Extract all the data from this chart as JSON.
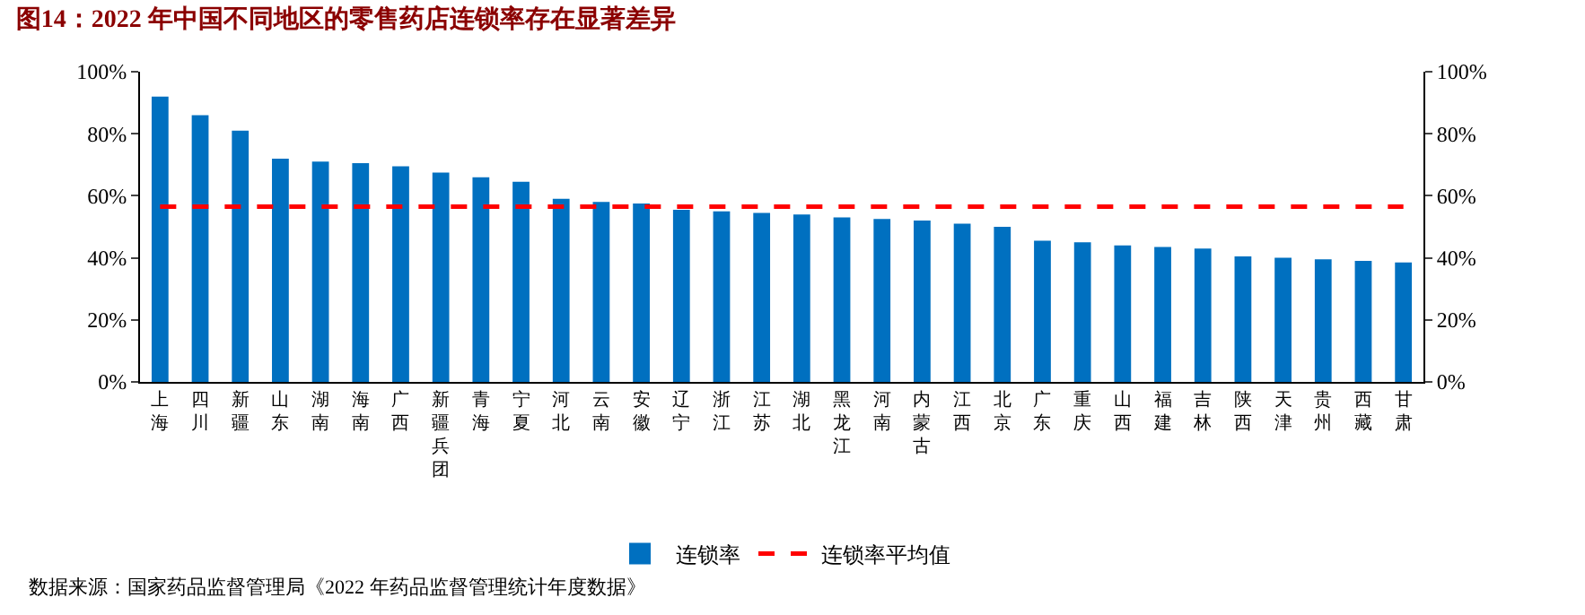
{
  "chart_data": {
    "type": "bar",
    "title": "图14：2022 年中国不同地区的零售药店连锁率存在显著差异",
    "categories": [
      "上海",
      "四川",
      "新疆",
      "山东",
      "湖南",
      "海南",
      "广西",
      "新疆兵团",
      "青海",
      "宁夏",
      "河北",
      "云南",
      "安徽",
      "辽宁",
      "浙江",
      "江苏",
      "湖北",
      "黑龙江",
      "河南",
      "内蒙古",
      "江西",
      "北京",
      "广东",
      "重庆",
      "山西",
      "福建",
      "吉林",
      "陕西",
      "天津",
      "贵州",
      "西藏",
      "甘肃"
    ],
    "series": [
      {
        "name": "连锁率",
        "color": "#0070c0",
        "values": [
          92,
          86,
          81,
          72,
          71,
          70.5,
          69.5,
          67.5,
          66,
          64.5,
          59,
          58,
          57.5,
          55.5,
          55,
          54.5,
          54,
          53,
          52.5,
          52,
          51,
          50,
          45.5,
          45,
          44,
          43.5,
          43,
          40.5,
          40,
          39.5,
          39,
          38.5
        ]
      },
      {
        "name": "连锁率平均值",
        "type": "line",
        "color": "#ff0000",
        "line_style": "dashed",
        "values": [
          56.5,
          56.5,
          56.5,
          56.5,
          56.5,
          56.5,
          56.5,
          56.5,
          56.5,
          56.5,
          56.5,
          56.5,
          56.5,
          56.5,
          56.5,
          56.5,
          56.5,
          56.5,
          56.5,
          56.5,
          56.5,
          56.5,
          56.5,
          56.5,
          56.5,
          56.5,
          56.5,
          56.5,
          56.5,
          56.5,
          56.5,
          56.5
        ]
      }
    ],
    "ylim": [
      0,
      100
    ],
    "yticks": [
      {
        "value": 0,
        "label": "0%"
      },
      {
        "value": 20,
        "label": "20%"
      },
      {
        "value": 40,
        "label": "40%"
      },
      {
        "value": 60,
        "label": "60%"
      },
      {
        "value": 80,
        "label": "80%"
      },
      {
        "value": 100,
        "label": "100%"
      }
    ],
    "y2lim": [
      0,
      100
    ],
    "y2ticks": [
      {
        "value": 0,
        "label": "0%"
      },
      {
        "value": 20,
        "label": "20%"
      },
      {
        "value": 40,
        "label": "40%"
      },
      {
        "value": 60,
        "label": "60%"
      },
      {
        "value": 80,
        "label": "80%"
      },
      {
        "value": 100,
        "label": "100%"
      }
    ],
    "grid": false,
    "legend": "bottom",
    "annotations": [
      "数据来源：国家药品监督管理局《2022 年药品监督管理统计年度数据》"
    ]
  }
}
